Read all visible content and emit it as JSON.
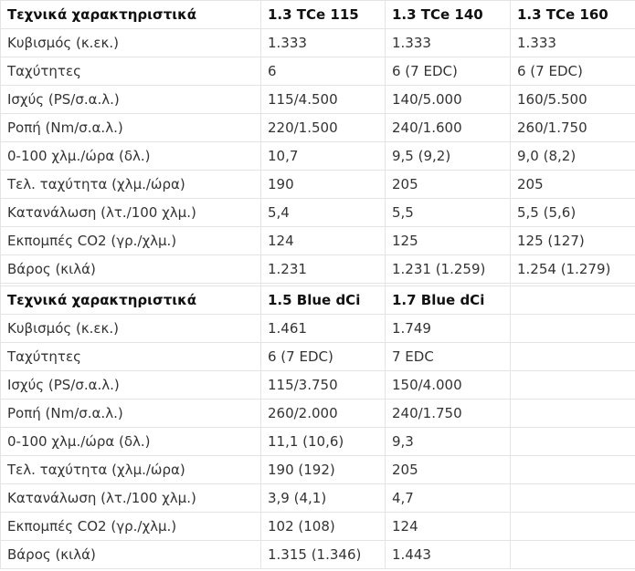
{
  "sections": [
    {
      "header": [
        "Τεχνικά χαρακτηριστικά",
        "1.3 TCe 115",
        "1.3 TCe 140",
        "1.3 TCe 160"
      ],
      "rows": [
        [
          "Κυβισμός (κ.εκ.)",
          "1.333",
          "1.333",
          "1.333"
        ],
        [
          "Ταχύτητες",
          "6",
          "6 (7 EDC)",
          "6 (7 EDC)"
        ],
        [
          "Ισχύς (PS/σ.α.λ.)",
          "115/4.500",
          "140/5.000",
          "160/5.500"
        ],
        [
          "Ροπή (Nm/σ.α.λ.)",
          "220/1.500",
          "240/1.600",
          "260/1.750"
        ],
        [
          "0-100 χλμ./ώρα (δλ.)",
          "10,7",
          "9,5 (9,2)",
          "9,0 (8,2)"
        ],
        [
          "Τελ. ταχύτητα (χλμ./ώρα)",
          "190",
          "205",
          "205"
        ],
        [
          "Κατανάλωση (λτ./100 χλμ.)",
          "5,4",
          "5,5",
          "5,5 (5,6)"
        ],
        [
          "Εκπομπές CO2 (γρ./χλμ.)",
          "124",
          "125",
          "125 (127)"
        ],
        [
          "Βάρος (κιλά)",
          "1.231",
          "1.231 (1.259)",
          "1.254 (1.279)"
        ]
      ]
    },
    {
      "header": [
        "Τεχνικά χαρακτηριστικά",
        "1.5 Blue dCi",
        "1.7 Blue dCi",
        ""
      ],
      "rows": [
        [
          "Κυβισμός (κ.εκ.)",
          "1.461",
          "1.749",
          ""
        ],
        [
          "Ταχύτητες",
          "6 (7 EDC)",
          "7 EDC",
          ""
        ],
        [
          "Ισχύς (PS/σ.α.λ.)",
          "115/3.750",
          "150/4.000",
          ""
        ],
        [
          "Ροπή (Nm/σ.α.λ.)",
          "260/2.000",
          "240/1.750",
          ""
        ],
        [
          "0-100 χλμ./ώρα (δλ.)",
          "11,1 (10,6)",
          "9,3",
          ""
        ],
        [
          "Τελ. ταχύτητα (χλμ./ώρα)",
          "190 (192)",
          "205",
          ""
        ],
        [
          "Κατανάλωση (λτ./100 χλμ.)",
          "3,9 (4,1)",
          "4,7",
          ""
        ],
        [
          "Εκπομπές CO2 (γρ./χλμ.)",
          "102 (108)",
          "124",
          ""
        ],
        [
          "Βάρος (κιλά)",
          "1.315 (1.346)",
          "1.443",
          ""
        ]
      ]
    }
  ]
}
